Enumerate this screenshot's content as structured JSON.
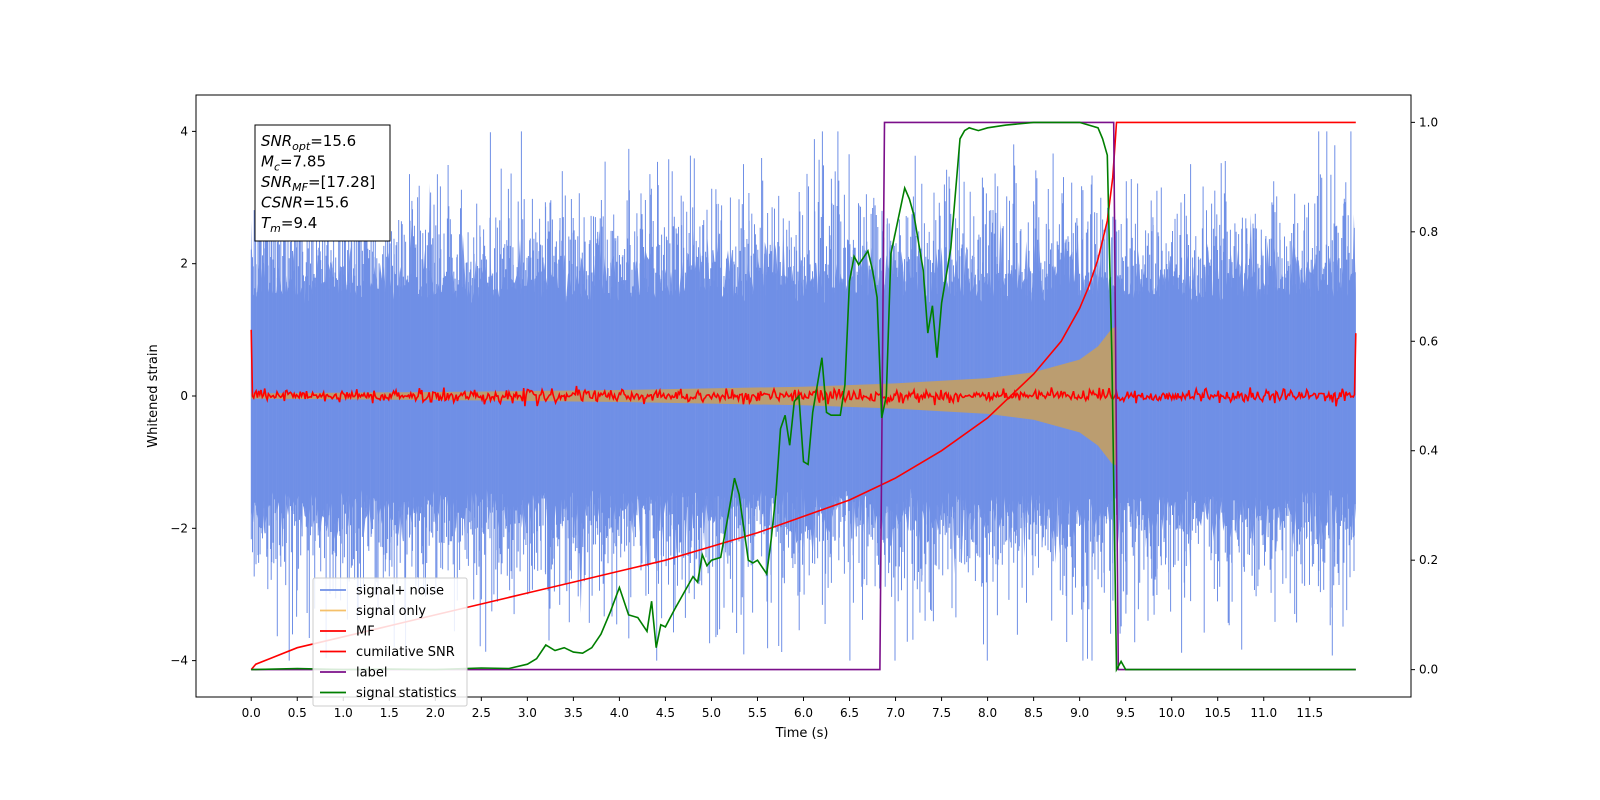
{
  "chart_data": {
    "type": "line",
    "xlabel": "Time (s)",
    "ylabel": "Whitened strain",
    "xlim": [
      -0.6,
      12.6
    ],
    "ylim": [
      -4.55,
      4.55
    ],
    "y2lim": [
      -0.05,
      1.05
    ],
    "xticks": [
      "0.0",
      "0.5",
      "1.0",
      "1.5",
      "2.0",
      "2.5",
      "3.0",
      "3.5",
      "4.0",
      "4.5",
      "5.0",
      "5.5",
      "6.0",
      "6.5",
      "7.0",
      "7.5",
      "8.0",
      "8.5",
      "9.0",
      "9.5",
      "10.0",
      "10.5",
      "11.0",
      "11.5"
    ],
    "yticks": [
      "4",
      "2",
      "0",
      "−2",
      "−4"
    ],
    "y2ticks": [
      "1.0",
      "0.8",
      "0.6",
      "0.4",
      "0.2",
      "0.0"
    ],
    "grid": false,
    "legend_position": "lower-left",
    "annotation": {
      "lines": [
        {
          "name": "SNR",
          "sub": "opt",
          "value": "=15.6"
        },
        {
          "name": "M",
          "sub": "c",
          "value": "=7.85"
        },
        {
          "name": "SNR",
          "sub": "MF",
          "value": "=[17.28]"
        },
        {
          "name": "CSNR",
          "sub": "",
          "value": "=15.6"
        },
        {
          "name": "T",
          "sub": "m",
          "value": "=9.4"
        }
      ]
    },
    "series": [
      {
        "name": "signal+ noise",
        "color": "#6f8fe6",
        "axis": "left",
        "description_values": {
          "t_start": 0.0,
          "t_end": 12.0,
          "noise_std": 1.0,
          "peak_abs": 4.0
        }
      },
      {
        "name": "signal only",
        "color": "#f5c06a",
        "axis": "left",
        "envelope": {
          "t": [
            0.0,
            2.0,
            4.0,
            6.0,
            7.0,
            8.0,
            8.5,
            9.0,
            9.2,
            9.35,
            9.4
          ],
          "amp": [
            0.04,
            0.06,
            0.09,
            0.14,
            0.19,
            0.27,
            0.36,
            0.55,
            0.75,
            1.02,
            1.05
          ]
        }
      },
      {
        "name": "MF",
        "color": "#ff0000",
        "axis": "left",
        "description_values": {
          "baseline": 0.0,
          "noise_std": 0.05,
          "edge_start": 1.0,
          "edge_end": 0.95
        }
      },
      {
        "name": "cumilative SNR",
        "color": "#ff0000",
        "axis": "right",
        "x": [
          0.0,
          0.05,
          0.2,
          0.5,
          1.0,
          1.5,
          2.0,
          2.5,
          3.0,
          3.5,
          4.0,
          4.5,
          5.0,
          5.5,
          6.0,
          6.5,
          7.0,
          7.5,
          8.0,
          8.5,
          8.8,
          9.0,
          9.1,
          9.2,
          9.3,
          9.36,
          9.4,
          12.0
        ],
        "y": [
          0.0,
          0.01,
          0.02,
          0.04,
          0.06,
          0.08,
          0.1,
          0.12,
          0.14,
          0.16,
          0.18,
          0.2,
          0.225,
          0.25,
          0.28,
          0.31,
          0.35,
          0.4,
          0.46,
          0.54,
          0.6,
          0.66,
          0.7,
          0.75,
          0.82,
          0.9,
          1.0,
          1.0
        ]
      },
      {
        "name": "label",
        "color": "#7b0f8a",
        "axis": "right",
        "x": [
          0.0,
          6.83,
          6.88,
          9.37,
          9.42,
          12.0
        ],
        "y": [
          0.0,
          0.0,
          1.0,
          1.0,
          0.0,
          0.0
        ]
      },
      {
        "name": "signal statistics",
        "color": "#007f00",
        "axis": "right",
        "x": [
          0.0,
          0.5,
          1.0,
          1.5,
          2.0,
          2.5,
          2.8,
          3.0,
          3.1,
          3.2,
          3.3,
          3.4,
          3.5,
          3.6,
          3.7,
          3.8,
          3.9,
          4.0,
          4.1,
          4.2,
          4.3,
          4.35,
          4.4,
          4.45,
          4.5,
          4.6,
          4.7,
          4.8,
          4.85,
          4.9,
          4.95,
          5.0,
          5.1,
          5.2,
          5.25,
          5.3,
          5.4,
          5.45,
          5.5,
          5.6,
          5.65,
          5.7,
          5.75,
          5.8,
          5.85,
          5.9,
          5.95,
          6.0,
          6.05,
          6.1,
          6.2,
          6.25,
          6.3,
          6.4,
          6.45,
          6.5,
          6.55,
          6.6,
          6.7,
          6.75,
          6.8,
          6.85,
          6.9,
          6.95,
          7.0,
          7.1,
          7.15,
          7.2,
          7.3,
          7.35,
          7.4,
          7.45,
          7.5,
          7.55,
          7.6,
          7.7,
          7.75,
          7.8,
          7.9,
          8.0,
          8.2,
          8.5,
          9.0,
          9.2,
          9.25,
          9.3,
          9.35,
          9.4,
          9.45,
          9.5,
          10.0,
          12.0
        ],
        "y": [
          0.0,
          0.002,
          0.0,
          0.001,
          0.0,
          0.003,
          0.002,
          0.01,
          0.02,
          0.045,
          0.035,
          0.04,
          0.032,
          0.03,
          0.04,
          0.065,
          0.105,
          0.15,
          0.1,
          0.095,
          0.07,
          0.125,
          0.04,
          0.082,
          0.078,
          0.11,
          0.14,
          0.17,
          0.16,
          0.21,
          0.19,
          0.2,
          0.205,
          0.3,
          0.35,
          0.32,
          0.2,
          0.195,
          0.2,
          0.175,
          0.24,
          0.32,
          0.44,
          0.465,
          0.41,
          0.49,
          0.5,
          0.38,
          0.375,
          0.47,
          0.57,
          0.47,
          0.465,
          0.465,
          0.52,
          0.71,
          0.755,
          0.74,
          0.765,
          0.73,
          0.68,
          0.46,
          0.5,
          0.76,
          0.8,
          0.88,
          0.86,
          0.83,
          0.73,
          0.615,
          0.665,
          0.57,
          0.67,
          0.72,
          0.77,
          0.97,
          0.985,
          0.99,
          0.985,
          0.99,
          0.995,
          1.0,
          1.0,
          0.99,
          0.97,
          0.94,
          0.57,
          0.0,
          0.015,
          0.0,
          0.0,
          0.0
        ]
      }
    ]
  }
}
